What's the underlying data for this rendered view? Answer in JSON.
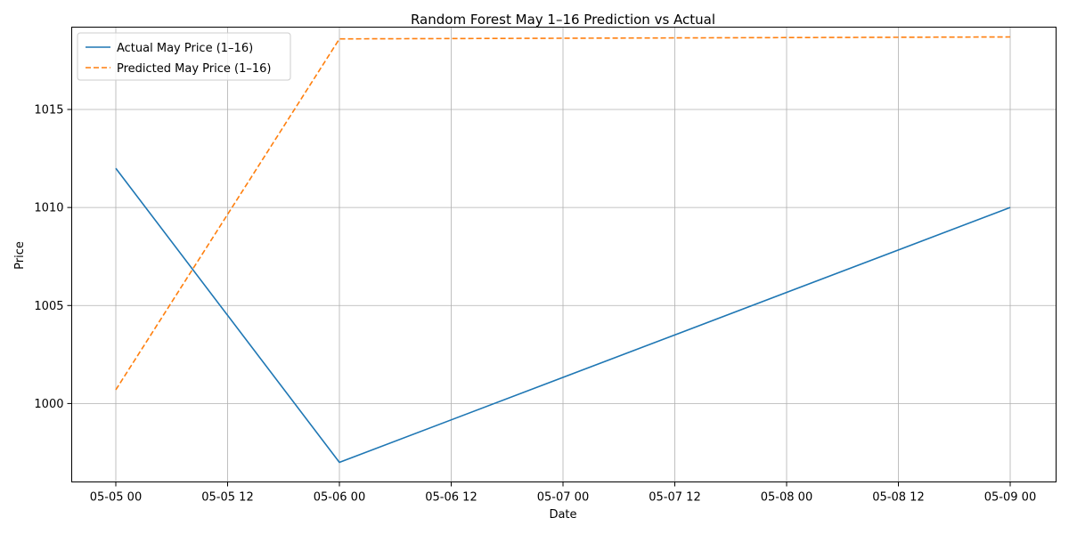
{
  "chart_data": {
    "type": "line",
    "title": "Random Forest May 1–16 Prediction vs Actual",
    "xlabel": "Date",
    "ylabel": "Price",
    "x_axis": {
      "kind": "datetime",
      "range": [
        "05-05 00",
        "05-09 00"
      ],
      "tick_labels": [
        "05-05 00",
        "05-05 12",
        "05-06 00",
        "05-06 12",
        "05-07 00",
        "05-07 12",
        "05-08 00",
        "05-08 12",
        "05-09 00"
      ]
    },
    "y_axis": {
      "range": [
        996,
        1019.2
      ],
      "ticks": [
        1000,
        1005,
        1010,
        1015
      ],
      "tick_labels": [
        "1000",
        "1005",
        "1010",
        "1015"
      ]
    },
    "grid": true,
    "legend_position": "top-left",
    "series": [
      {
        "name": "Actual May Price (1–16)",
        "color": "#1f77b4",
        "style": "solid",
        "points": [
          {
            "x": "05-05 00",
            "y": 1012
          },
          {
            "x": "05-06 00",
            "y": 997
          },
          {
            "x": "05-09 00",
            "y": 1010
          }
        ]
      },
      {
        "name": "Predicted May Price (1–16)",
        "color": "#ff7f0e",
        "style": "dashed",
        "points": [
          {
            "x": "05-05 00",
            "y": 1000.7
          },
          {
            "x": "05-06 00",
            "y": 1018.6
          },
          {
            "x": "05-09 00",
            "y": 1018.7
          }
        ]
      }
    ]
  }
}
